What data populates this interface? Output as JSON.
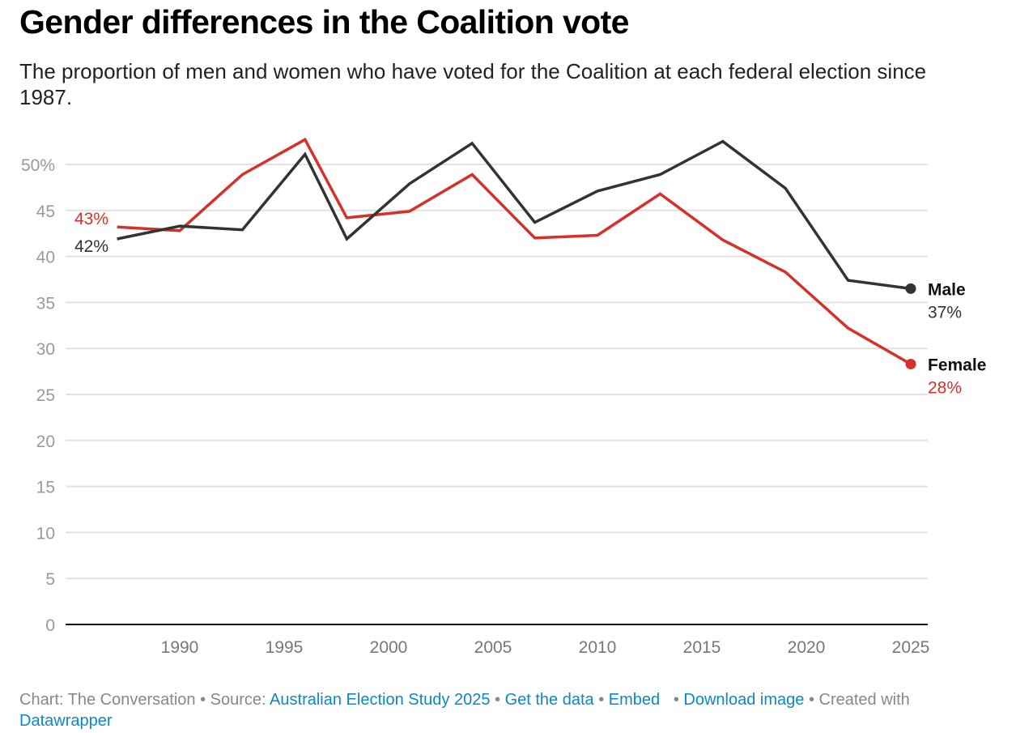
{
  "header": {
    "title": "Gender differences in the Coalition vote",
    "subtitle": "The proportion of men and women who have voted for the Coalition at each federal election since 1987."
  },
  "chart_data": {
    "type": "line",
    "title": "Gender differences in the Coalition vote",
    "subtitle": "The proportion of men and women who have voted for the Coalition at each federal election since 1987.",
    "xlabel": "",
    "ylabel": "",
    "x": [
      1987,
      1990,
      1993,
      1996,
      1998,
      2001,
      2004,
      2007,
      2010,
      2013,
      2016,
      2019,
      2022,
      2025
    ],
    "xlim": [
      1985,
      2025
    ],
    "ylim": [
      0,
      50
    ],
    "grid": true,
    "x_ticks": [
      1990,
      1995,
      2000,
      2005,
      2010,
      2015,
      2020,
      2025
    ],
    "y_ticks": [
      0,
      5,
      10,
      15,
      20,
      25,
      30,
      35,
      40,
      45,
      50
    ],
    "y_tick_labels": [
      "0",
      "5",
      "10",
      "15",
      "20",
      "25",
      "30",
      "35",
      "40",
      "45",
      "50%"
    ],
    "series": [
      {
        "name": "Male",
        "color": "#333333",
        "values": [
          41.9,
          43.3,
          42.9,
          51.1,
          41.9,
          47.9,
          52.3,
          43.7,
          47.1,
          48.9,
          52.5,
          47.4,
          37.4,
          36.5
        ],
        "start_label": "42%",
        "end_label": "37%"
      },
      {
        "name": "Female",
        "color": "#d6302a",
        "values": [
          43.2,
          42.8,
          48.9,
          52.7,
          44.2,
          44.9,
          48.9,
          42.0,
          42.3,
          46.8,
          41.8,
          38.3,
          32.2,
          28.3
        ],
        "start_label": "43%",
        "end_label": "28%"
      }
    ],
    "legend": "direct-labels-right"
  },
  "footer": {
    "chart_prefix": "Chart: The Conversation",
    "source_prefix": "Source:",
    "source_link": "Australian Election Study 2025",
    "get_data": "Get the data",
    "embed": "Embed",
    "download": "Download image",
    "created_with": "Created with",
    "datawrapper": "Datawrapper",
    "link_color": "#0a88c8"
  }
}
